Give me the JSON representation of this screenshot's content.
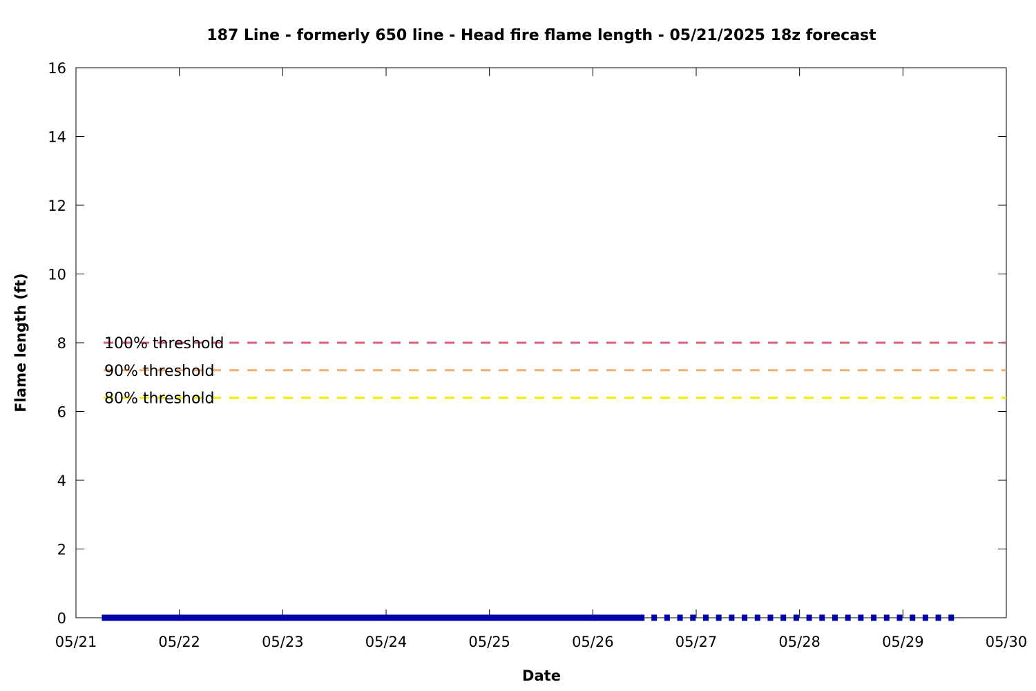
{
  "chart_data": {
    "type": "line",
    "title": "187 Line - formerly 650 line - Head fire flame length - 05/21/2025 18z forecast",
    "xlabel": "Date",
    "ylabel": "Flame length (ft)",
    "x_tick_labels": [
      "05/21",
      "05/22",
      "05/23",
      "05/24",
      "05/25",
      "05/26",
      "05/27",
      "05/28",
      "05/29",
      "05/30"
    ],
    "xlim": [
      "05/21",
      "05/30"
    ],
    "y_tick_labels": [
      "0",
      "2",
      "4",
      "6",
      "8",
      "10",
      "12",
      "14",
      "16"
    ],
    "ylim": [
      0,
      16
    ],
    "grid": false,
    "series": [
      {
        "style": "solid",
        "color": "#0000aa",
        "x_start": "05/21 06z",
        "x_end": "05/26 12z",
        "values": [
          0
        ]
      },
      {
        "style": "dotted",
        "color": "#0000aa",
        "x_start": "05/26 12z",
        "x_end": "05/29 12z",
        "values": [
          0
        ]
      }
    ],
    "thresholds": [
      {
        "label": "100% threshold",
        "value": 8.0,
        "color": "#d9607a"
      },
      {
        "label": "90% threshold",
        "value": 7.2,
        "color": "#f0b070"
      },
      {
        "label": "80% threshold",
        "value": 6.4,
        "color": "#f0f000"
      }
    ]
  }
}
